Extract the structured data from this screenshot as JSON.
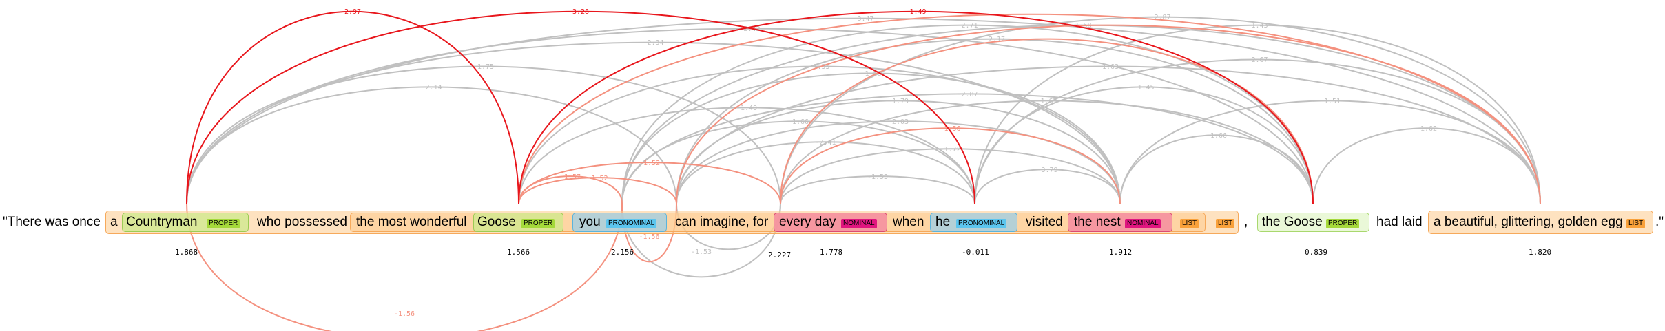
{
  "colors": {
    "gray": "#c0c0c0",
    "red": "#e8161c",
    "salmon": "#f4917f",
    "list": "#f9a13a",
    "proper": "#a5d93a",
    "pronominal": "#5cc5ee",
    "nominal": "#e0157f"
  },
  "text": {
    "quote_open": "\"There was once",
    "a": "a",
    "countryman": "Countryman",
    "who_possessed": "who possessed",
    "most_wonderful": "the most wonderful",
    "goose": "Goose",
    "you": "you",
    "can_imagine": "can imagine, for",
    "every_day": "every day",
    "when": "when",
    "he": "he",
    "visited": "visited",
    "the_nest": "the nest",
    "comma": ",",
    "the_goose": "the Goose",
    "had_laid": "had laid",
    "golden_egg": "a beautiful, glittering, golden egg",
    "quote_close": ".\""
  },
  "tags": {
    "proper": "PROPER",
    "pronominal": "PRONOMINAL",
    "nominal": "NOMINAL",
    "list": "LIST"
  },
  "scores": {
    "countryman": "1.868",
    "goose": "1.566",
    "you": "2.156",
    "can_imagine": "2.227",
    "every_day": "1.778",
    "he": "-0.011",
    "the_nest": "1.912",
    "the_goose": "0.839",
    "golden_egg": "1.820"
  },
  "arcs": [
    {
      "from": "countryman",
      "to": "goose",
      "label": "2.97",
      "color": "red",
      "h": 280
    },
    {
      "from": "countryman",
      "to": "he",
      "label": "3.28",
      "color": "red",
      "h": 280
    },
    {
      "from": "goose",
      "to": "the_goose",
      "label": "-1.49",
      "color": "red",
      "h": 280
    },
    {
      "from": "goose",
      "to": "golden_egg",
      "label": "",
      "color": "salmon",
      "h": 276
    },
    {
      "from": "countryman",
      "to": "you",
      "label": "-1.56",
      "color": "salmon",
      "h": -160
    },
    {
      "from": "you",
      "to": "can_imagine",
      "label": "-1.56",
      "color": "salmon",
      "h": -48
    },
    {
      "from": "goose",
      "to": "you",
      "label": "-1.57",
      "color": "salmon",
      "h": 40
    },
    {
      "from": "goose",
      "to": "can_imagine",
      "label": "-1.52",
      "color": "salmon",
      "h": 38
    },
    {
      "from": "goose",
      "to": "every_day",
      "label": "-1.52",
      "color": "salmon",
      "h": 60
    },
    {
      "from": "every_day",
      "to": "the_nest",
      "label": "-1.56",
      "color": "salmon",
      "h": 110
    },
    {
      "from": "every_day",
      "to": "the_goose",
      "label": "",
      "color": "salmon",
      "h": 240
    },
    {
      "from": "can_imagine",
      "to": "golden_egg",
      "label": "",
      "color": "salmon",
      "h": 260
    },
    {
      "from": "countryman",
      "to": "can_imagine",
      "label": "-2.14",
      "color": "gray",
      "h": 170
    },
    {
      "from": "countryman",
      "to": "every_day",
      "label": "-1.75",
      "color": "gray",
      "h": 200
    },
    {
      "from": "countryman",
      "to": "the_nest",
      "label": "-2.34",
      "color": "gray",
      "h": 235
    },
    {
      "from": "countryman",
      "to": "the_goose",
      "label": "-2.42",
      "color": "gray",
      "h": 255
    },
    {
      "from": "countryman",
      "to": "golden_egg",
      "label": "-3.47",
      "color": "gray",
      "h": 270
    },
    {
      "from": "goose",
      "to": "he",
      "label": "-1.48",
      "color": "gray",
      "h": 140
    },
    {
      "from": "goose",
      "to": "the_nest",
      "label": "-1.55",
      "color": "gray",
      "h": 200
    },
    {
      "from": "you",
      "to": "every_day",
      "label": "-1.53",
      "color": "gray",
      "h": -70
    },
    {
      "from": "you",
      "to": "the_goose",
      "label": "-2.71",
      "color": "gray",
      "h": 260
    },
    {
      "from": "can_imagine",
      "to": "every_day",
      "label": "",
      "color": "gray",
      "h": -30
    },
    {
      "from": "can_imagine",
      "to": "he",
      "label": "-2.41",
      "color": "gray",
      "h": 90
    },
    {
      "from": "can_imagine",
      "to": "the_nest",
      "label": "-1.79",
      "color": "gray",
      "h": 150
    },
    {
      "from": "can_imagine",
      "to": "the_goose",
      "label": "-2.17",
      "color": "gray",
      "h": 240
    },
    {
      "from": "you",
      "to": "he",
      "label": "-1.66",
      "color": "gray",
      "h": 120
    },
    {
      "from": "you",
      "to": "the_nest",
      "label": "-1.58",
      "color": "gray",
      "h": 190
    },
    {
      "from": "you",
      "to": "golden_egg",
      "label": "-1.58",
      "color": "gray",
      "h": 260
    },
    {
      "from": "every_day",
      "to": "he",
      "label": "-1.53",
      "color": "gray",
      "h": 40
    },
    {
      "from": "every_day",
      "to": "golden_egg",
      "label": "-2.87",
      "color": "gray",
      "h": 272
    },
    {
      "from": "he",
      "to": "the_nest",
      "label": "-3.79",
      "color": "gray",
      "h": 50
    },
    {
      "from": "he",
      "to": "the_goose",
      "label": "-1.45",
      "color": "gray",
      "h": 170
    },
    {
      "from": "he",
      "to": "golden_egg",
      "label": "-2.67",
      "color": "gray",
      "h": 210
    },
    {
      "from": "the_nest",
      "to": "the_goose",
      "label": "-1.66",
      "color": "gray",
      "h": 100
    },
    {
      "from": "the_nest",
      "to": "golden_egg",
      "label": "-1.51",
      "color": "gray",
      "h": 150
    },
    {
      "from": "the_goose",
      "to": "golden_egg",
      "label": "-1.62",
      "color": "gray",
      "h": 110
    },
    {
      "from": "every_day",
      "to": "the_nest",
      "label": "-1.72",
      "color": "gray",
      "h": 80
    },
    {
      "from": "can_imagine",
      "to": "golden_egg",
      "label": "-1.63",
      "color": "gray",
      "h": 200
    },
    {
      "from": "you",
      "to": "the_goose",
      "label": "-2.87",
      "color": "gray",
      "h": 160
    },
    {
      "from": "every_day",
      "to": "the_goose",
      "label": "-1.67",
      "color": "gray",
      "h": 150
    },
    {
      "from": "can_imagine",
      "to": "the_nest",
      "label": "-2.03",
      "color": "gray",
      "h": 120
    },
    {
      "from": "he",
      "to": "golden_egg",
      "label": "-1.43",
      "color": "gray",
      "h": 260
    }
  ]
}
